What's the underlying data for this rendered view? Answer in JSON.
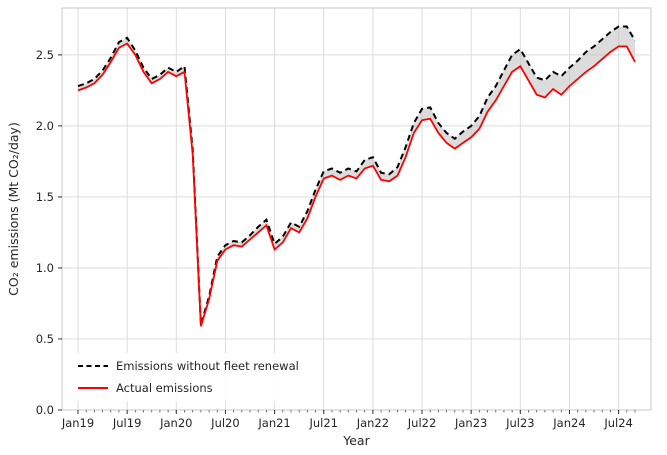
{
  "chart_data": {
    "type": "line",
    "xlabel": "Year",
    "ylabel": "CO₂ emissions (Mt CO₂/day)",
    "ylim": [
      0.0,
      2.83
    ],
    "yticks": [
      0.0,
      0.5,
      1.0,
      1.5,
      2.0,
      2.5
    ],
    "ytick_labels": [
      "0.0",
      "0.5",
      "1.0",
      "1.5",
      "2.0",
      "2.5"
    ],
    "xticks": [
      {
        "index": 0,
        "label": "Jan19"
      },
      {
        "index": 6,
        "label": "Jul19"
      },
      {
        "index": 12,
        "label": "Jan20"
      },
      {
        "index": 18,
        "label": "Jul20"
      },
      {
        "index": 24,
        "label": "Jan21"
      },
      {
        "index": 30,
        "label": "Jul21"
      },
      {
        "index": 36,
        "label": "Jan22"
      },
      {
        "index": 42,
        "label": "Jul22"
      },
      {
        "index": 48,
        "label": "Jan23"
      },
      {
        "index": 54,
        "label": "Jul23"
      },
      {
        "index": 60,
        "label": "Jan24"
      },
      {
        "index": 66,
        "label": "Jul24"
      }
    ],
    "x": [
      "Jan19",
      "Feb19",
      "Mar19",
      "Apr19",
      "May19",
      "Jun19",
      "Jul19",
      "Aug19",
      "Sep19",
      "Oct19",
      "Nov19",
      "Dec19",
      "Jan20",
      "Feb20",
      "Mar20",
      "Apr20",
      "May20",
      "Jun20",
      "Jul20",
      "Aug20",
      "Sep20",
      "Oct20",
      "Nov20",
      "Dec20",
      "Jan21",
      "Feb21",
      "Mar21",
      "Apr21",
      "May21",
      "Jun21",
      "Jul21",
      "Aug21",
      "Sep21",
      "Oct21",
      "Nov21",
      "Dec21",
      "Jan22",
      "Feb22",
      "Mar22",
      "Apr22",
      "May22",
      "Jun22",
      "Jul22",
      "Aug22",
      "Sep22",
      "Oct22",
      "Nov22",
      "Dec22",
      "Jan23",
      "Feb23",
      "Mar23",
      "Apr23",
      "May23",
      "Jun23",
      "Jul23",
      "Aug23",
      "Sep23",
      "Oct23",
      "Nov23",
      "Dec23",
      "Jan24",
      "Feb24",
      "Mar24",
      "Apr24",
      "May24",
      "Jun24",
      "Jul24",
      "Aug24",
      "Sep24"
    ],
    "series": [
      {
        "name": "Emissions without fleet renewal",
        "color": "#000000",
        "style": "dashed",
        "values": [
          2.28,
          2.3,
          2.33,
          2.39,
          2.48,
          2.59,
          2.62,
          2.53,
          2.41,
          2.33,
          2.36,
          2.41,
          2.38,
          2.42,
          1.83,
          0.6,
          0.8,
          1.08,
          1.16,
          1.19,
          1.18,
          1.23,
          1.29,
          1.34,
          1.17,
          1.22,
          1.32,
          1.29,
          1.4,
          1.55,
          1.68,
          1.7,
          1.67,
          1.7,
          1.68,
          1.76,
          1.78,
          1.67,
          1.66,
          1.71,
          1.85,
          2.02,
          2.12,
          2.13,
          2.02,
          1.95,
          1.91,
          1.96,
          2.0,
          2.07,
          2.2,
          2.28,
          2.39,
          2.5,
          2.54,
          2.44,
          2.34,
          2.32,
          2.38,
          2.35,
          2.41,
          2.46,
          2.52,
          2.56,
          2.61,
          2.66,
          2.7,
          2.7,
          2.6
        ]
      },
      {
        "name": "Actual emissions",
        "color": "#ff0000",
        "style": "solid",
        "values": [
          2.25,
          2.27,
          2.3,
          2.36,
          2.45,
          2.55,
          2.58,
          2.5,
          2.38,
          2.3,
          2.33,
          2.38,
          2.35,
          2.38,
          1.8,
          0.59,
          0.78,
          1.05,
          1.13,
          1.16,
          1.15,
          1.2,
          1.25,
          1.3,
          1.13,
          1.18,
          1.28,
          1.25,
          1.35,
          1.5,
          1.63,
          1.65,
          1.62,
          1.65,
          1.63,
          1.7,
          1.72,
          1.62,
          1.61,
          1.65,
          1.78,
          1.95,
          2.04,
          2.05,
          1.95,
          1.88,
          1.84,
          1.88,
          1.92,
          1.98,
          2.1,
          2.18,
          2.28,
          2.38,
          2.42,
          2.32,
          2.22,
          2.2,
          2.26,
          2.22,
          2.28,
          2.33,
          2.38,
          2.42,
          2.47,
          2.52,
          2.56,
          2.56,
          2.45
        ]
      }
    ],
    "fill_between": {
      "enabled": true,
      "color": "#c0c0c0",
      "opacity": 0.55
    },
    "grid": {
      "on": true,
      "color": "#dcdcdc"
    },
    "spine_color": "#c9c9c9",
    "legend": {
      "position": "lower-left",
      "entries": [
        {
          "label": "Emissions without fleet renewal",
          "color": "#000000",
          "dashed": true
        },
        {
          "label": "Actual emissions",
          "color": "#ff0000",
          "dashed": false
        }
      ]
    }
  }
}
